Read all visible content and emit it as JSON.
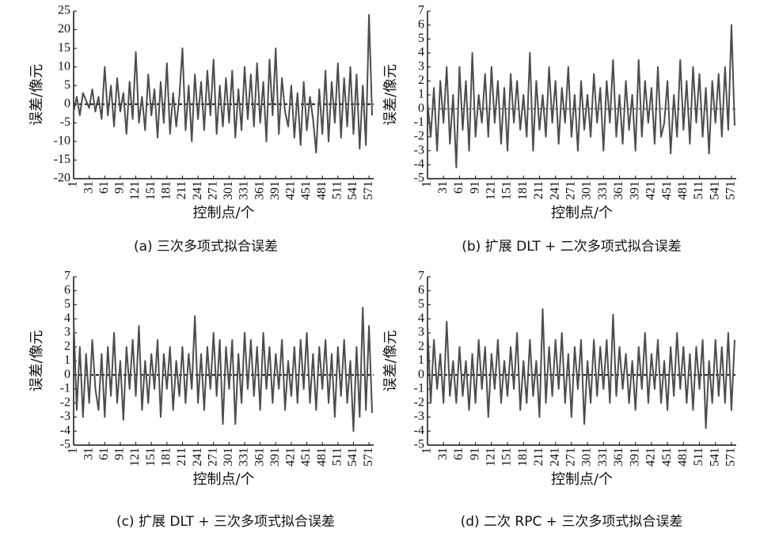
{
  "chart_data": [
    {
      "type": "line",
      "caption": "(a) 三次多项式拟合误差",
      "xlabel": "控制点/个",
      "ylabel": "误差/像元",
      "xlim": [
        1,
        580
      ],
      "xticks": [
        1,
        31,
        61,
        91,
        121,
        151,
        181,
        211,
        241,
        271,
        301,
        331,
        361,
        391,
        421,
        451,
        481,
        511,
        541,
        571
      ],
      "ylim": [
        -20,
        25
      ],
      "yticks": [
        -20,
        -15,
        -10,
        -5,
        0,
        5,
        10,
        15,
        20,
        25
      ],
      "x": [
        1,
        7,
        13,
        19,
        25,
        31,
        37,
        43,
        49,
        55,
        61,
        67,
        73,
        79,
        85,
        91,
        97,
        103,
        109,
        115,
        121,
        127,
        133,
        139,
        145,
        151,
        157,
        163,
        169,
        175,
        181,
        187,
        193,
        199,
        205,
        211,
        217,
        223,
        229,
        235,
        241,
        247,
        253,
        259,
        265,
        271,
        277,
        283,
        289,
        295,
        301,
        307,
        313,
        319,
        325,
        331,
        337,
        343,
        349,
        355,
        361,
        367,
        373,
        379,
        385,
        391,
        397,
        403,
        409,
        415,
        421,
        427,
        433,
        439,
        445,
        451,
        457,
        463,
        469,
        475,
        481,
        487,
        493,
        499,
        505,
        511,
        517,
        523,
        529,
        535,
        541,
        547,
        553,
        559,
        565,
        571,
        577
      ],
      "series": [
        {
          "color": "#4d4d4d",
          "values": [
            -2,
            2,
            -3,
            3,
            1,
            -1,
            4,
            -2,
            2,
            -4,
            10,
            -3,
            5,
            -6,
            7,
            -2,
            3,
            -8,
            6,
            -4,
            14,
            -5,
            2,
            -7,
            8,
            -3,
            4,
            -9,
            6,
            -5,
            11,
            -8,
            3,
            -6,
            2,
            15,
            -7,
            5,
            -10,
            8,
            -4,
            6,
            -7,
            9,
            -3,
            12,
            -8,
            5,
            -6,
            7,
            -5,
            9,
            -9,
            4,
            -7,
            10,
            -4,
            8,
            -6,
            11,
            -5,
            6,
            -10,
            12,
            -3,
            15,
            -8,
            7,
            -2,
            -6,
            5,
            -9,
            3,
            -11,
            6,
            -7,
            2,
            -4,
            -13,
            4,
            -8,
            9,
            -10,
            6,
            -5,
            11,
            -9,
            7,
            -6,
            10,
            -8,
            8,
            -12,
            5,
            -11,
            24,
            -3
          ]
        }
      ]
    },
    {
      "type": "line",
      "caption": "(b) 扩展 DLT + 二次多项式拟合误差",
      "xlabel": "控制点/个",
      "ylabel": "误差/像元",
      "xlim": [
        1,
        580
      ],
      "xticks": [
        1,
        31,
        61,
        91,
        121,
        151,
        181,
        211,
        241,
        271,
        301,
        331,
        361,
        391,
        421,
        451,
        481,
        511,
        541,
        571
      ],
      "ylim": [
        -5,
        7
      ],
      "yticks": [
        -5,
        -4,
        -3,
        -2,
        -1,
        0,
        1,
        2,
        3,
        4,
        5,
        6,
        7
      ],
      "x": [
        1,
        7,
        13,
        19,
        25,
        31,
        37,
        43,
        49,
        55,
        61,
        67,
        73,
        79,
        85,
        91,
        97,
        103,
        109,
        115,
        121,
        127,
        133,
        139,
        145,
        151,
        157,
        163,
        169,
        175,
        181,
        187,
        193,
        199,
        205,
        211,
        217,
        223,
        229,
        235,
        241,
        247,
        253,
        259,
        265,
        271,
        277,
        283,
        289,
        295,
        301,
        307,
        313,
        319,
        325,
        331,
        337,
        343,
        349,
        355,
        361,
        367,
        373,
        379,
        385,
        391,
        397,
        403,
        409,
        415,
        421,
        427,
        433,
        439,
        445,
        451,
        457,
        463,
        469,
        475,
        481,
        487,
        493,
        499,
        505,
        511,
        517,
        523,
        529,
        535,
        541,
        547,
        553,
        559,
        565,
        571,
        577
      ],
      "series": [
        {
          "color": "#4d4d4d",
          "values": [
            0.5,
            -2,
            1.5,
            -3,
            2,
            -1,
            3,
            -2.5,
            1,
            -4.2,
            3,
            -1.5,
            2,
            -3,
            4,
            -2,
            1,
            -1,
            2.5,
            -2,
            3,
            -1,
            2,
            -2.5,
            1.5,
            -3,
            2.5,
            -1,
            2,
            -1.5,
            1,
            -2,
            4,
            -3,
            2,
            -1.5,
            1,
            -2,
            3,
            -1,
            2,
            -2.5,
            1.5,
            -1,
            3,
            -2,
            1,
            -3,
            2,
            -1.5,
            1,
            -2,
            2.5,
            -1,
            1.5,
            -3,
            2,
            -1,
            3.5,
            -2,
            1,
            -2.5,
            2,
            -1.5,
            1,
            -3,
            3.5,
            -2,
            2,
            -1,
            1.5,
            -2.5,
            3,
            -2,
            -1,
            2,
            -3.2,
            1,
            -2,
            3.5,
            -1.5,
            2,
            -2.5,
            3,
            -1,
            2.5,
            -2,
            1.5,
            -3.2,
            2,
            -1,
            2.5,
            -2,
            3,
            -1.5,
            6,
            -1.2
          ]
        }
      ]
    },
    {
      "type": "line",
      "caption": "(c) 扩展 DLT + 三次多项式拟合误差",
      "xlabel": "控制点/个",
      "ylabel": "误差/像元",
      "xlim": [
        1,
        580
      ],
      "xticks": [
        1,
        31,
        61,
        91,
        121,
        151,
        181,
        211,
        241,
        271,
        301,
        331,
        361,
        391,
        421,
        451,
        481,
        511,
        541,
        571
      ],
      "ylim": [
        -5,
        7
      ],
      "yticks": [
        -5,
        -4,
        -3,
        -2,
        -1,
        0,
        1,
        2,
        3,
        4,
        5,
        6,
        7
      ],
      "x": [
        1,
        7,
        13,
        19,
        25,
        31,
        37,
        43,
        49,
        55,
        61,
        67,
        73,
        79,
        85,
        91,
        97,
        103,
        109,
        115,
        121,
        127,
        133,
        139,
        145,
        151,
        157,
        163,
        169,
        175,
        181,
        187,
        193,
        199,
        205,
        211,
        217,
        223,
        229,
        235,
        241,
        247,
        253,
        259,
        265,
        271,
        277,
        283,
        289,
        295,
        301,
        307,
        313,
        319,
        325,
        331,
        337,
        343,
        349,
        355,
        361,
        367,
        373,
        379,
        385,
        391,
        397,
        403,
        409,
        415,
        421,
        427,
        433,
        439,
        445,
        451,
        457,
        463,
        469,
        475,
        481,
        487,
        493,
        499,
        505,
        511,
        517,
        523,
        529,
        535,
        541,
        547,
        553,
        559,
        565,
        571,
        577
      ],
      "series": [
        {
          "color": "#4d4d4d",
          "values": [
            4,
            -2.5,
            2,
            -3,
            1.5,
            -2,
            2.5,
            -1,
            -2.5,
            1.5,
            -3,
            2,
            -1.5,
            3,
            -2,
            1,
            -3.2,
            2,
            -1,
            2.5,
            -1.5,
            3.5,
            -2.5,
            1,
            -2,
            1.5,
            -1,
            2.5,
            -3,
            1.5,
            -1,
            2,
            -2.5,
            1,
            -1.5,
            2,
            -2,
            1.5,
            -1,
            4.2,
            -2,
            1.5,
            -2.5,
            2,
            -1,
            3,
            -1.5,
            2.5,
            -3.5,
            2,
            -1,
            2.5,
            -3.5,
            1.5,
            -2,
            3,
            -1,
            2.5,
            -1.5,
            2,
            -2.5,
            3,
            -1,
            2,
            -2,
            1.5,
            -1,
            2.5,
            -2.5,
            1,
            -1.5,
            2,
            -2,
            2.5,
            -1,
            3,
            -2,
            1.5,
            -2.5,
            2,
            -1,
            2.5,
            -2,
            1.5,
            -3,
            2,
            -1.5,
            2.5,
            -2,
            1,
            -4,
            2,
            -3,
            4.8,
            -2.5,
            3.5,
            -2.7
          ]
        }
      ]
    },
    {
      "type": "line",
      "caption": "(d) 二次 RPC + 三次多项式拟合误差",
      "xlabel": "控制点/个",
      "ylabel": "误差/像元",
      "xlim": [
        1,
        580
      ],
      "xticks": [
        1,
        31,
        61,
        91,
        121,
        151,
        181,
        211,
        241,
        271,
        301,
        331,
        361,
        391,
        421,
        451,
        481,
        511,
        541,
        571
      ],
      "ylim": [
        -5,
        7
      ],
      "yticks": [
        -5,
        -4,
        -3,
        -2,
        -1,
        0,
        1,
        2,
        3,
        4,
        5,
        6,
        7
      ],
      "x": [
        1,
        7,
        13,
        19,
        25,
        31,
        37,
        43,
        49,
        55,
        61,
        67,
        73,
        79,
        85,
        91,
        97,
        103,
        109,
        115,
        121,
        127,
        133,
        139,
        145,
        151,
        157,
        163,
        169,
        175,
        181,
        187,
        193,
        199,
        205,
        211,
        217,
        223,
        229,
        235,
        241,
        247,
        253,
        259,
        265,
        271,
        277,
        283,
        289,
        295,
        301,
        307,
        313,
        319,
        325,
        331,
        337,
        343,
        349,
        355,
        361,
        367,
        373,
        379,
        385,
        391,
        397,
        403,
        409,
        415,
        421,
        427,
        433,
        439,
        445,
        451,
        457,
        463,
        469,
        475,
        481,
        487,
        493,
        499,
        505,
        511,
        517,
        523,
        529,
        535,
        541,
        547,
        553,
        559,
        565,
        571,
        577
      ],
      "series": [
        {
          "color": "#4d4d4d",
          "values": [
            3.5,
            -2,
            2.5,
            -1,
            1.5,
            -2,
            3.8,
            -1.5,
            1,
            -2,
            2,
            -1.5,
            1,
            -2.5,
            1.5,
            -2,
            2.5,
            -1,
            2,
            -3,
            1.5,
            -1,
            2.5,
            -2,
            1,
            -1.5,
            2,
            -1,
            3,
            -2.5,
            1,
            -2,
            2.5,
            -1.5,
            1,
            -3,
            4.7,
            -2,
            2,
            -1.5,
            2.5,
            -1,
            3,
            -2,
            1.5,
            -3,
            2,
            -1,
            2.5,
            -3.5,
            1,
            -2,
            2.5,
            -1.5,
            2,
            -1,
            2.5,
            -2,
            4.3,
            -1.5,
            2,
            -1,
            1.5,
            -2,
            1,
            -2.5,
            2,
            -1,
            3,
            -2,
            1.5,
            -1,
            2.5,
            -2,
            1,
            -2.5,
            2,
            -1.5,
            3,
            -1,
            2,
            -2,
            1.5,
            -2.5,
            2,
            -1,
            2.5,
            -3.8,
            1,
            -2,
            2.5,
            -1.5,
            2,
            -2,
            3,
            -2.5,
            2.5
          ]
        }
      ]
    }
  ]
}
